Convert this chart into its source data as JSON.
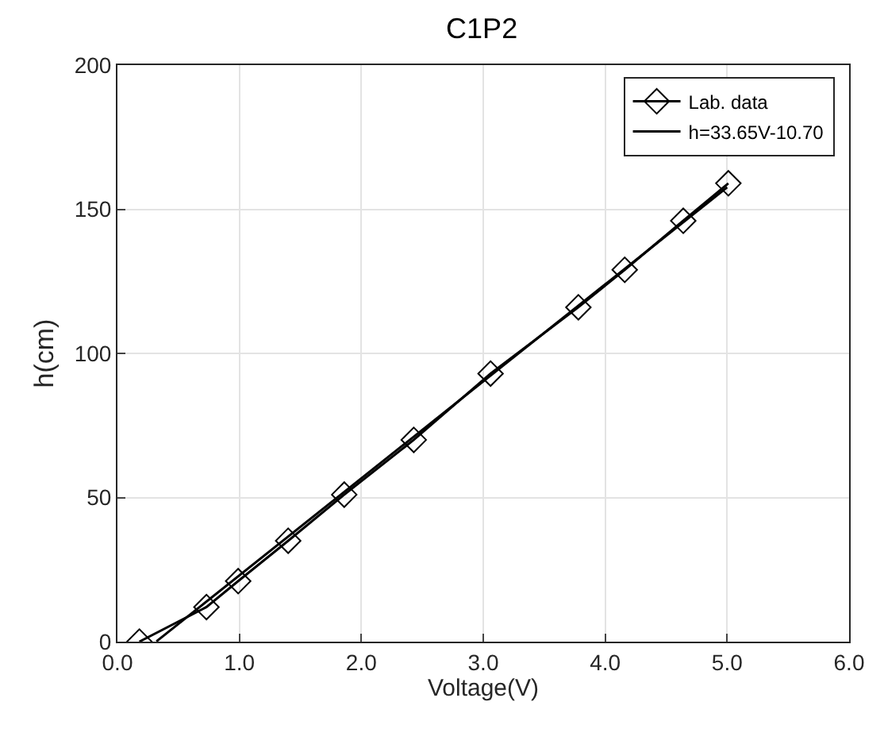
{
  "chart_data": {
    "type": "line",
    "title": "C1P2",
    "xlabel": "Voltage(V)",
    "ylabel": "h(cm)",
    "xlim": [
      0,
      6
    ],
    "xticks": [
      {
        "value": 0,
        "label": "0.0"
      },
      {
        "value": 1,
        "label": "1.0"
      },
      {
        "value": 2,
        "label": "2.0"
      },
      {
        "value": 3,
        "label": "3.0"
      },
      {
        "value": 4,
        "label": "4.0"
      },
      {
        "value": 5,
        "label": "5.0"
      },
      {
        "value": 6,
        "label": "6.0"
      }
    ],
    "ylim": [
      0,
      200
    ],
    "yticks": [
      0,
      50,
      100,
      150,
      200
    ],
    "grid": true,
    "legend": "top right",
    "series": [
      {
        "name": "Lab. data",
        "color": "#000000",
        "marker": "diamond",
        "x": [
          0.18,
          0.73,
          0.99,
          1.4,
          1.86,
          2.43,
          3.06,
          3.78,
          4.16,
          4.64,
          5.01
        ],
        "values": [
          0,
          12,
          21,
          35,
          51,
          70,
          93,
          116,
          129,
          146,
          159
        ]
      },
      {
        "name": "h=33.65V-10.70",
        "color": "#000000",
        "marker": "none",
        "x": [
          0.32,
          5.0
        ],
        "values": [
          0.1,
          157.6
        ]
      }
    ]
  }
}
